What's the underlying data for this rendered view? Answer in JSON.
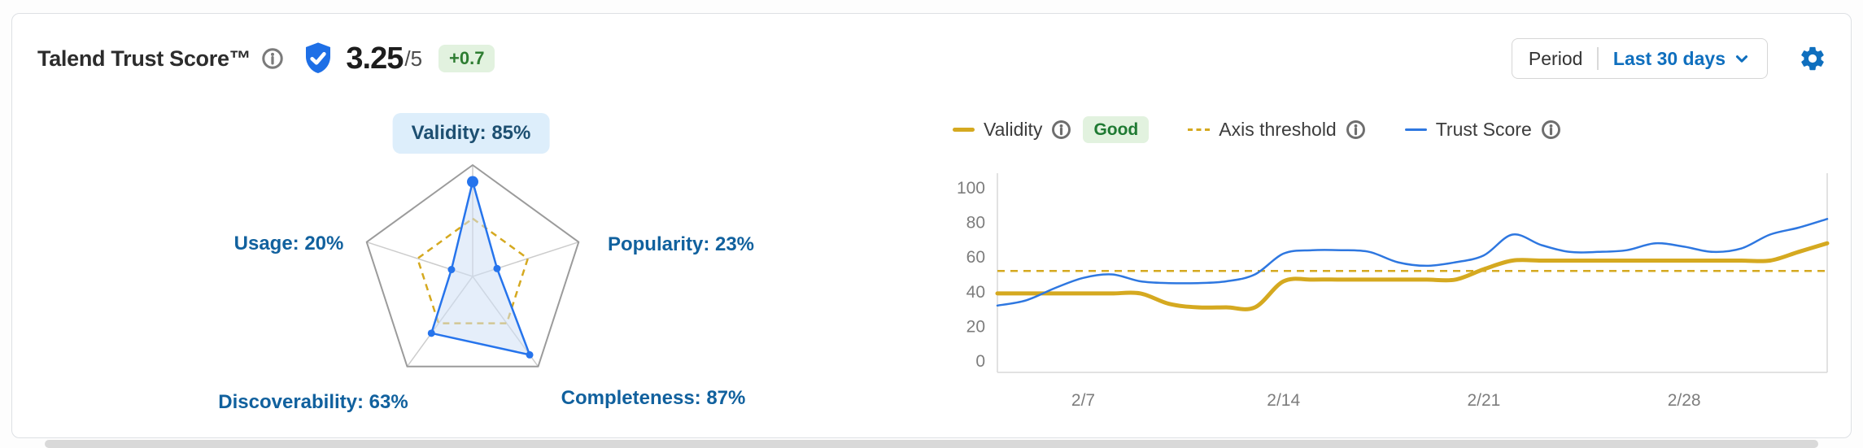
{
  "card": {
    "title": "Talend Trust Score™",
    "score": "3.25",
    "score_max": "/5",
    "score_delta": "+0.7",
    "period": {
      "label": "Period",
      "value": "Last 30 days"
    },
    "icons": [
      "info-icon",
      "trust-shield-check-icon",
      "chevron-down-icon",
      "gear-icon"
    ]
  },
  "colors": {
    "radar_data": "#2674ec",
    "radar_fill": "#cfe0f5",
    "threshold_gold": "#d5a920",
    "trust_blue": "#2e77e0",
    "label_blue": "#11619e",
    "pill_bg": "#ddeefb",
    "pill_text": "#1d4f71",
    "good_green": "#1f7a33",
    "good_bg": "#e2f2df",
    "grid_gray": "#9b9b9b",
    "axis_gray": "#d9d9d9",
    "accent_blue": "#0f6fbe"
  },
  "chart_data": [
    {
      "type": "radar",
      "max": 100,
      "threshold": 52,
      "metrics": [
        {
          "name": "Validity",
          "value": 85,
          "label": "Validity: 85%",
          "highlighted": true
        },
        {
          "name": "Popularity",
          "value": 23,
          "label": "Popularity: 23%"
        },
        {
          "name": "Completeness",
          "value": 87,
          "label": "Completeness: 87%"
        },
        {
          "name": "Discoverability",
          "value": 63,
          "label": "Discoverability: 63%"
        },
        {
          "name": "Usage",
          "value": 20,
          "label": "Usage: 20%"
        }
      ]
    },
    {
      "type": "line",
      "x_axis": {
        "tick_labels": [
          "2/7",
          "2/14",
          "2/21",
          "2/28"
        ],
        "tick_positions": [
          3,
          10,
          17,
          24
        ],
        "points": 30
      },
      "y_axis": {
        "ticks": [
          0,
          20,
          40,
          60,
          80,
          100
        ],
        "range": [
          0,
          100
        ]
      },
      "threshold": {
        "label": "Axis threshold",
        "value": 52,
        "color": "#d5a920",
        "style": "dashed"
      },
      "series": [
        {
          "name": "Validity",
          "badge": "Good",
          "color": "#d5a920",
          "width": 5,
          "values": [
            39,
            39,
            39,
            39,
            39,
            39,
            33,
            31,
            31,
            31,
            46,
            47,
            47,
            47,
            47,
            47,
            47,
            53,
            58,
            58,
            58,
            58,
            58,
            58,
            58,
            58,
            58,
            58,
            63,
            68
          ]
        },
        {
          "name": "Trust Score",
          "color": "#2e77e0",
          "width": 2.5,
          "values": [
            32,
            35,
            42,
            48,
            50,
            46,
            45,
            45,
            46,
            50,
            62,
            64,
            64,
            63,
            57,
            55,
            57,
            61,
            73,
            67,
            63,
            63,
            64,
            68,
            66,
            63,
            65,
            73,
            77,
            82
          ]
        }
      ],
      "legend": [
        {
          "label": "Validity",
          "swatch": "solid-gold",
          "badge": "Good"
        },
        {
          "label": "Axis threshold",
          "swatch": "dashed-gold"
        },
        {
          "label": "Trust Score",
          "swatch": "solid-blue"
        }
      ],
      "legend_position": "top"
    }
  ]
}
